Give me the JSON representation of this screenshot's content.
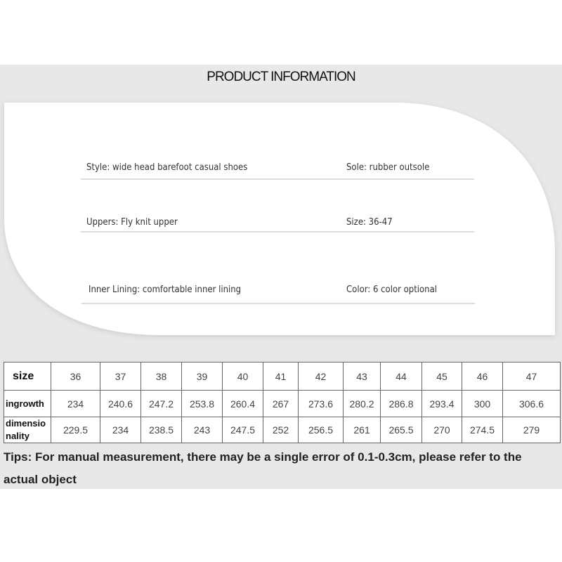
{
  "title": "PRODUCT INFORMATION",
  "info": [
    {
      "left": "Style: wide head barefoot casual shoes",
      "right": "Sole: rubber outsole"
    },
    {
      "left": "Uppers: Fly knit upper",
      "right": "Size: 36-47"
    },
    {
      "left": "Inner Lining: comfortable inner lining",
      "right": "Color: 6 color optional"
    }
  ],
  "table": {
    "size_label": "size",
    "sizes": [
      "36",
      "37",
      "38",
      "39",
      "40",
      "41",
      "42",
      "43",
      "44",
      "45",
      "46",
      "47"
    ],
    "ingrowth_label": "ingrowth",
    "ingrowth": [
      "234",
      "240.6",
      "247.2",
      "253.8",
      "260.4",
      "267",
      "273.6",
      "280.2",
      "286.8",
      "293.4",
      "300",
      "306.6"
    ],
    "dim_label_1": "dimensio",
    "dim_label_2": "nality",
    "dimensionality": [
      "229.5",
      "234",
      "238.5",
      "243",
      "247.5",
      "252",
      "256.5",
      "261",
      "265.5",
      "270",
      "274.5",
      "279"
    ]
  },
  "tips": "Tips: For manual measurement, there may be a single error of 0.1-0.3cm, please refer to the actual object"
}
